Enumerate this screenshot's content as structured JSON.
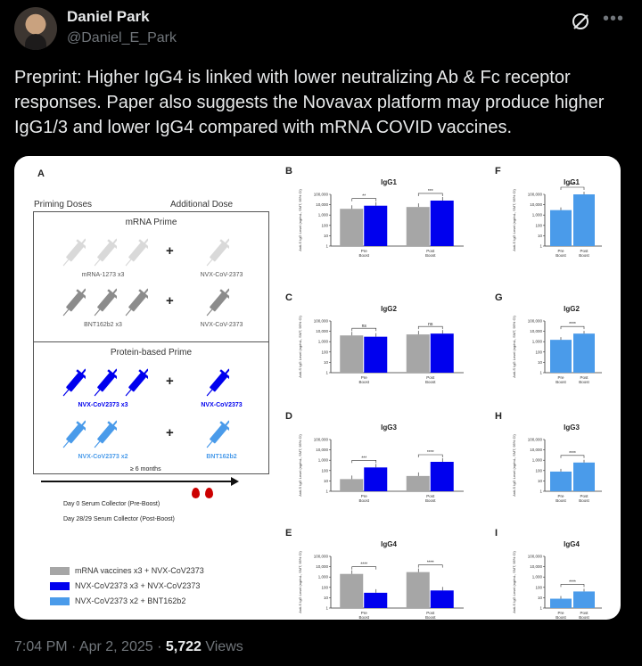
{
  "author": {
    "name": "Daniel Park",
    "handle": "@Daniel_E_Park"
  },
  "tweet": {
    "text": "Preprint: Higher IgG4 is linked with lower neutralizing Ab & Fc receptor responses. Paper also suggests the Novavax platform may produce higher IgG1/3 and lower IgG4 compared with mRNA COVID vaccines."
  },
  "figure": {
    "panelA": {
      "letter": "A",
      "priming_label": "Priming Doses",
      "additional_label": "Additional Dose",
      "mrna_title": "mRNA Prime",
      "protein_title": "Protein-based Prime",
      "rows": [
        {
          "prime": "mRNA-1273 x3",
          "boost": "NVX-CoV-2373"
        },
        {
          "prime": "BNT162b2 x3",
          "boost": "NVX-CoV-2373"
        },
        {
          "prime": "NVX-CoV2373 x3",
          "boost": "NVX-CoV2373"
        },
        {
          "prime": "NVX-CoV2373 x2",
          "boost": "BNT162b2"
        }
      ],
      "plus": "+",
      "months": "≥ 6 months",
      "day0": "Day 0 Serum Collector (Pre-Boost)",
      "day28": "Day 28/29 Serum Collector (Post-Boost)"
    },
    "legend": [
      {
        "label": "mRNA vaccines x3 + NVX-CoV2373",
        "color": "#a6a6a6"
      },
      {
        "label": "NVX-CoV2373 x3 + NVX-CoV2373",
        "color": "#0000ee"
      },
      {
        "label": "NVX-CoV2373 x2 + BNT162b2",
        "color": "#4a9bea"
      }
    ],
    "ylabel": "Anti-S IgG Level (ng/mL, SMT, 95% CI)",
    "yticks": [
      "100,000",
      "10,000",
      "1,000",
      "100",
      "10",
      "1"
    ],
    "colors": {
      "mrna": "#a6a6a6",
      "nvx3": "#0000ee",
      "nvx2": "#4a9bea"
    }
  },
  "chart_data": [
    {
      "panel": "B",
      "type": "bar",
      "title": "IgG1",
      "categories": [
        "Pre Boost",
        "Post Boost"
      ],
      "ylim": [
        1,
        100000
      ],
      "log": true,
      "series": [
        {
          "values": [
            4000,
            6000
          ]
        },
        {
          "values": [
            8000,
            25000
          ]
        }
      ],
      "sig": [
        "**",
        "***"
      ]
    },
    {
      "panel": "C",
      "type": "bar",
      "title": "IgG2",
      "categories": [
        "Pre Boost",
        "Post Boost"
      ],
      "ylim": [
        1,
        100000
      ],
      "log": true,
      "series": [
        {
          "values": [
            4000,
            5000
          ]
        },
        {
          "values": [
            3000,
            6000
          ]
        }
      ],
      "sig": [
        "ns",
        "ns"
      ]
    },
    {
      "panel": "D",
      "type": "bar",
      "title": "IgG3",
      "categories": [
        "Pre Boost",
        "Post Boost"
      ],
      "ylim": [
        1,
        100000
      ],
      "log": true,
      "series": [
        {
          "values": [
            15,
            30
          ]
        },
        {
          "values": [
            200,
            700
          ]
        }
      ],
      "sig": [
        "***",
        "****"
      ]
    },
    {
      "panel": "E",
      "type": "bar",
      "title": "IgG4",
      "categories": [
        "Pre Boost",
        "Post Boost"
      ],
      "ylim": [
        1,
        100000
      ],
      "log": true,
      "series": [
        {
          "values": [
            2000,
            3000
          ]
        },
        {
          "values": [
            30,
            50
          ]
        }
      ],
      "sig": [
        "****",
        "****"
      ]
    },
    {
      "panel": "F",
      "type": "bar",
      "title": "IgG1",
      "categories": [
        "Pre Boost",
        "Post Boost"
      ],
      "ylim": [
        1,
        100000
      ],
      "log": true,
      "series": [
        {
          "values": [
            3000,
            100000
          ]
        }
      ],
      "sig": [
        "****"
      ]
    },
    {
      "panel": "G",
      "type": "bar",
      "title": "IgG2",
      "categories": [
        "Pre Boost",
        "Post Boost"
      ],
      "ylim": [
        1,
        100000
      ],
      "log": true,
      "series": [
        {
          "values": [
            1500,
            6000
          ]
        }
      ],
      "sig": [
        "****"
      ]
    },
    {
      "panel": "H",
      "type": "bar",
      "title": "IgG3",
      "categories": [
        "Pre Boost",
        "Post Boost"
      ],
      "ylim": [
        1,
        100000
      ],
      "log": true,
      "series": [
        {
          "values": [
            80,
            600
          ]
        }
      ],
      "sig": [
        "****"
      ]
    },
    {
      "panel": "I",
      "type": "bar",
      "title": "IgG4",
      "categories": [
        "Pre Boost",
        "Post Boost"
      ],
      "ylim": [
        1,
        100000
      ],
      "log": true,
      "series": [
        {
          "values": [
            8,
            40
          ]
        }
      ],
      "sig": [
        "****"
      ]
    }
  ],
  "footer": {
    "time": "7:04 PM · Apr 2, 2025 · ",
    "views_count": "5,722",
    "views_label": " Views"
  }
}
